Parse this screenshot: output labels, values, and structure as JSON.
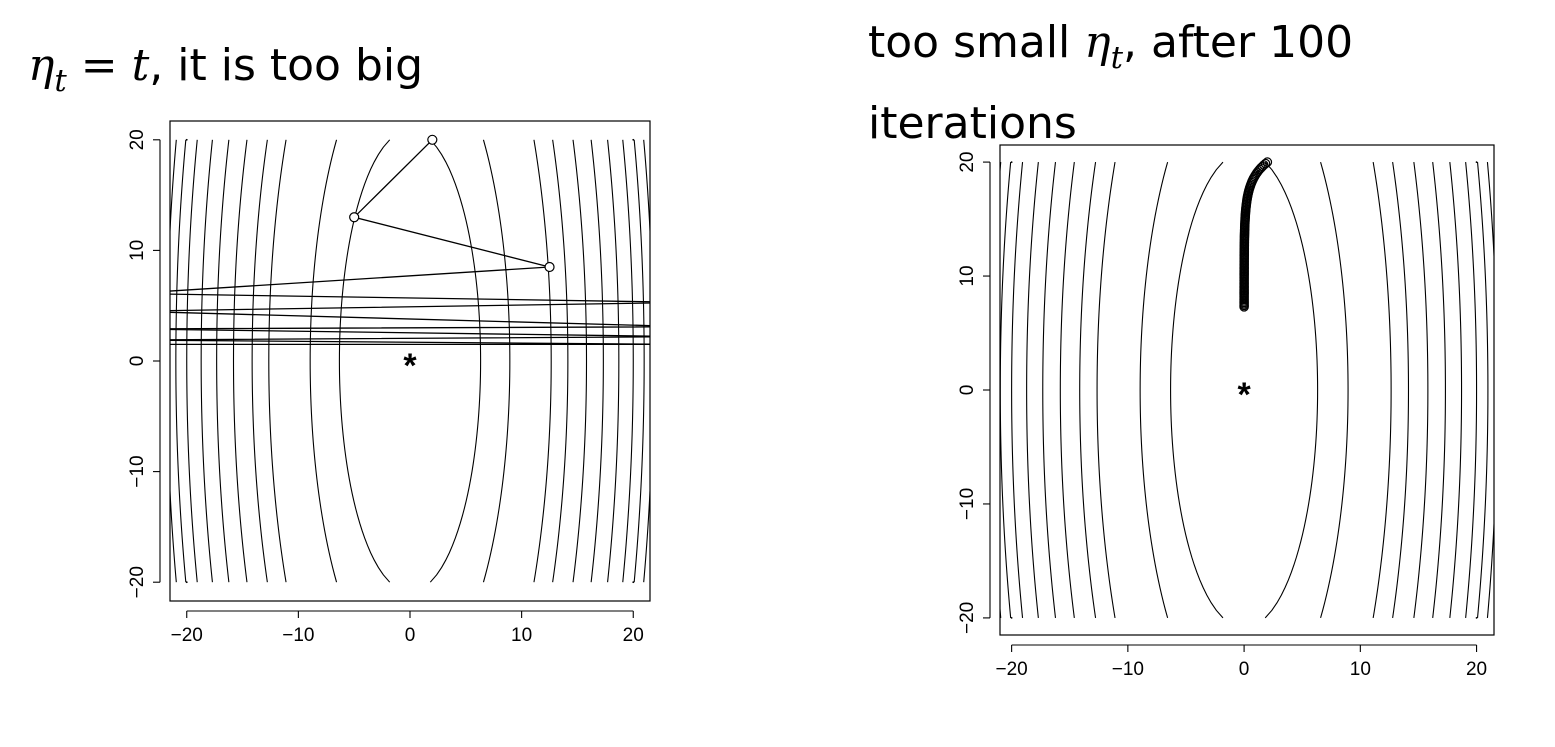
{
  "slides": {
    "left": {
      "title_math_symbol": "η",
      "title_math_subscript": "t",
      "title_math_rest": " = t",
      "title_text": ", it is too big"
    },
    "right": {
      "title_text_pre": "too small ",
      "title_math_symbol": "η",
      "title_math_subscript": "t",
      "title_text_post": ", after 100",
      "title_line2": "iterations"
    }
  },
  "chart_data": [
    {
      "type": "line",
      "title": "",
      "xlabel": "",
      "ylabel": "",
      "xlim": [
        -21.5,
        21.5
      ],
      "ylim": [
        -21.7,
        21.7
      ],
      "xticks": [
        -20,
        -10,
        0,
        10,
        20
      ],
      "yticks": [
        -20,
        -10,
        0,
        10,
        20
      ],
      "contours": {
        "function": "f(x, y) = x^2 + y^2 / 10.9",
        "levels": [
          40,
          80,
          160,
          200,
          250,
          300,
          350,
          400,
          440,
          475
        ]
      },
      "minimum_marker": {
        "label": "*",
        "x": 0,
        "y": 0
      },
      "path_points": [
        {
          "x": 2,
          "y": 20
        },
        {
          "x": -5,
          "y": 13
        },
        {
          "x": 12.5,
          "y": 8.5
        },
        {
          "x": -25,
          "y": 6.1
        },
        {
          "x": 25,
          "y": 5.3
        },
        {
          "x": -25,
          "y": 4.5
        },
        {
          "x": 25,
          "y": 3.1
        },
        {
          "x": -25,
          "y": 2.9
        },
        {
          "x": 25,
          "y": 2.2
        },
        {
          "x": -25,
          "y": 1.9
        },
        {
          "x": 25,
          "y": 1.5
        },
        {
          "x": -25,
          "y": 1.5
        }
      ]
    },
    {
      "type": "line",
      "title": "",
      "xlabel": "",
      "ylabel": "",
      "xlim": [
        -21,
        21.5
      ],
      "ylim": [
        -21.5,
        21.5
      ],
      "xticks": [
        -20,
        -10,
        0,
        10,
        20
      ],
      "yticks": [
        -20,
        -10,
        0,
        10,
        20
      ],
      "contours": {
        "function": "f(x, y) = x^2 + y^2 / 10.9",
        "levels": [
          40,
          80,
          160,
          200,
          250,
          300,
          350,
          400,
          440,
          475
        ]
      },
      "minimum_marker": {
        "label": "*",
        "x": 0,
        "y": 0
      },
      "iterations": 100,
      "path": {
        "start": {
          "x": 2,
          "y": 20
        },
        "end": {
          "x": 0,
          "y": 7.3
        }
      }
    }
  ]
}
